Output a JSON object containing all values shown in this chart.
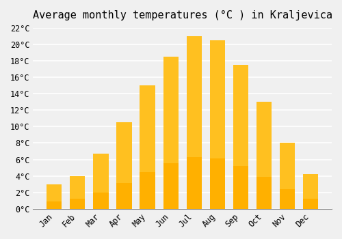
{
  "title": "Average monthly temperatures (°C ) in Kraljevica",
  "months": [
    "Jan",
    "Feb",
    "Mar",
    "Apr",
    "May",
    "Jun",
    "Jul",
    "Aug",
    "Sep",
    "Oct",
    "Nov",
    "Dec"
  ],
  "values": [
    3.0,
    4.0,
    6.7,
    10.5,
    15.0,
    18.5,
    21.0,
    20.5,
    17.5,
    13.0,
    8.0,
    4.2
  ],
  "bar_color_top": "#FFC020",
  "bar_color_bottom": "#FFB000",
  "background_color": "#F0F0F0",
  "grid_color": "#FFFFFF",
  "ylim": [
    0,
    22
  ],
  "yticks": [
    0,
    2,
    4,
    6,
    8,
    10,
    12,
    14,
    16,
    18,
    20,
    22
  ],
  "title_fontsize": 11,
  "tick_fontsize": 8.5,
  "font_family": "monospace"
}
